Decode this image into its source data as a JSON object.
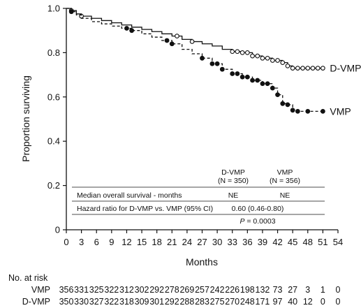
{
  "chart_data": {
    "type": "line",
    "title": "",
    "xlabel": "Months",
    "ylabel": "Proportion surviving",
    "xlim": [
      0,
      54
    ],
    "ylim": [
      0,
      1.0
    ],
    "x_ticks": [
      0,
      3,
      6,
      9,
      12,
      15,
      18,
      21,
      24,
      27,
      30,
      33,
      36,
      39,
      42,
      45,
      48,
      51,
      54
    ],
    "y_ticks": [
      {
        "value": 0,
        "label": "0"
      },
      {
        "value": 0.2,
        "label": "0.2"
      },
      {
        "value": 0.4,
        "label": "0.4"
      },
      {
        "value": 0.6,
        "label": "0.6"
      },
      {
        "value": 0.8,
        "label": "0.8"
      },
      {
        "value": 1.0,
        "label": "1.0"
      }
    ],
    "grid": false,
    "series": [
      {
        "name": "D-VMP",
        "line_style": "solid",
        "color": "#111111",
        "x": [
          0,
          1,
          2,
          3,
          5,
          7,
          9,
          11,
          13,
          15,
          17,
          19,
          21,
          23,
          25,
          27,
          29,
          31,
          33,
          35,
          37,
          39,
          41,
          43,
          44,
          45,
          46,
          48,
          50,
          51
        ],
        "y": [
          1.0,
          0.99,
          0.975,
          0.965,
          0.955,
          0.945,
          0.935,
          0.925,
          0.915,
          0.905,
          0.895,
          0.885,
          0.875,
          0.86,
          0.85,
          0.84,
          0.83,
          0.815,
          0.805,
          0.8,
          0.785,
          0.775,
          0.765,
          0.755,
          0.74,
          0.73,
          0.73,
          0.73,
          0.73,
          0.73
        ],
        "censor_x": [
          1,
          3,
          22,
          25,
          33,
          34,
          35,
          36,
          37,
          38,
          39,
          40,
          41,
          42,
          43,
          44,
          45,
          46,
          47,
          48,
          49,
          50,
          51
        ],
        "end_label": "D-VMP"
      },
      {
        "name": "VMP",
        "line_style": "dashed",
        "color": "#111111",
        "x": [
          0,
          1,
          2,
          3,
          5,
          7,
          9,
          11,
          13,
          15,
          17,
          19,
          21,
          23,
          25,
          27,
          29,
          31,
          33,
          35,
          37,
          39,
          41,
          42,
          43,
          44,
          45,
          46,
          48,
          51
        ],
        "y": [
          1.0,
          0.985,
          0.97,
          0.955,
          0.94,
          0.93,
          0.92,
          0.91,
          0.9,
          0.885,
          0.87,
          0.855,
          0.84,
          0.815,
          0.795,
          0.775,
          0.75,
          0.725,
          0.705,
          0.69,
          0.675,
          0.66,
          0.64,
          0.61,
          0.57,
          0.565,
          0.54,
          0.535,
          0.535,
          0.535
        ],
        "censor_x": [
          1,
          12,
          13,
          20,
          21,
          27,
          29,
          30,
          31,
          33,
          34,
          35,
          36,
          37,
          38,
          39,
          40,
          41,
          42,
          43,
          44,
          45,
          46,
          48,
          51
        ],
        "end_label": "VMP"
      }
    ],
    "inset_table": {
      "col_headers": [
        {
          "name": "D-VMP",
          "n": "(N = 350)"
        },
        {
          "name": "VMP",
          "n": "(N = 356)"
        }
      ],
      "rows": [
        {
          "label": "Median overall survival - months",
          "d_vmp": "NE",
          "vmp": "NE"
        },
        {
          "label": "Hazard ratio for D-VMP vs. VMP (95% CI)",
          "value": "0.60 (0.46-0.80)"
        }
      ],
      "p_prefix": "P",
      "p_value": " = 0.0003"
    },
    "risk_table": {
      "title": "No. at risk",
      "rows": [
        {
          "label": "VMP",
          "values": [
            "356",
            "331",
            "325",
            "322",
            "312",
            "302",
            "292",
            "278",
            "269",
            "257",
            "242",
            "226",
            "198",
            "132",
            "73",
            "27",
            "3",
            "1",
            "0"
          ]
        },
        {
          "label": "D-VMP",
          "values": [
            "350",
            "330",
            "327",
            "322",
            "318",
            "309",
            "301",
            "292",
            "288",
            "283",
            "275",
            "270",
            "248",
            "171",
            "97",
            "40",
            "12",
            "0",
            "0"
          ]
        }
      ]
    }
  }
}
